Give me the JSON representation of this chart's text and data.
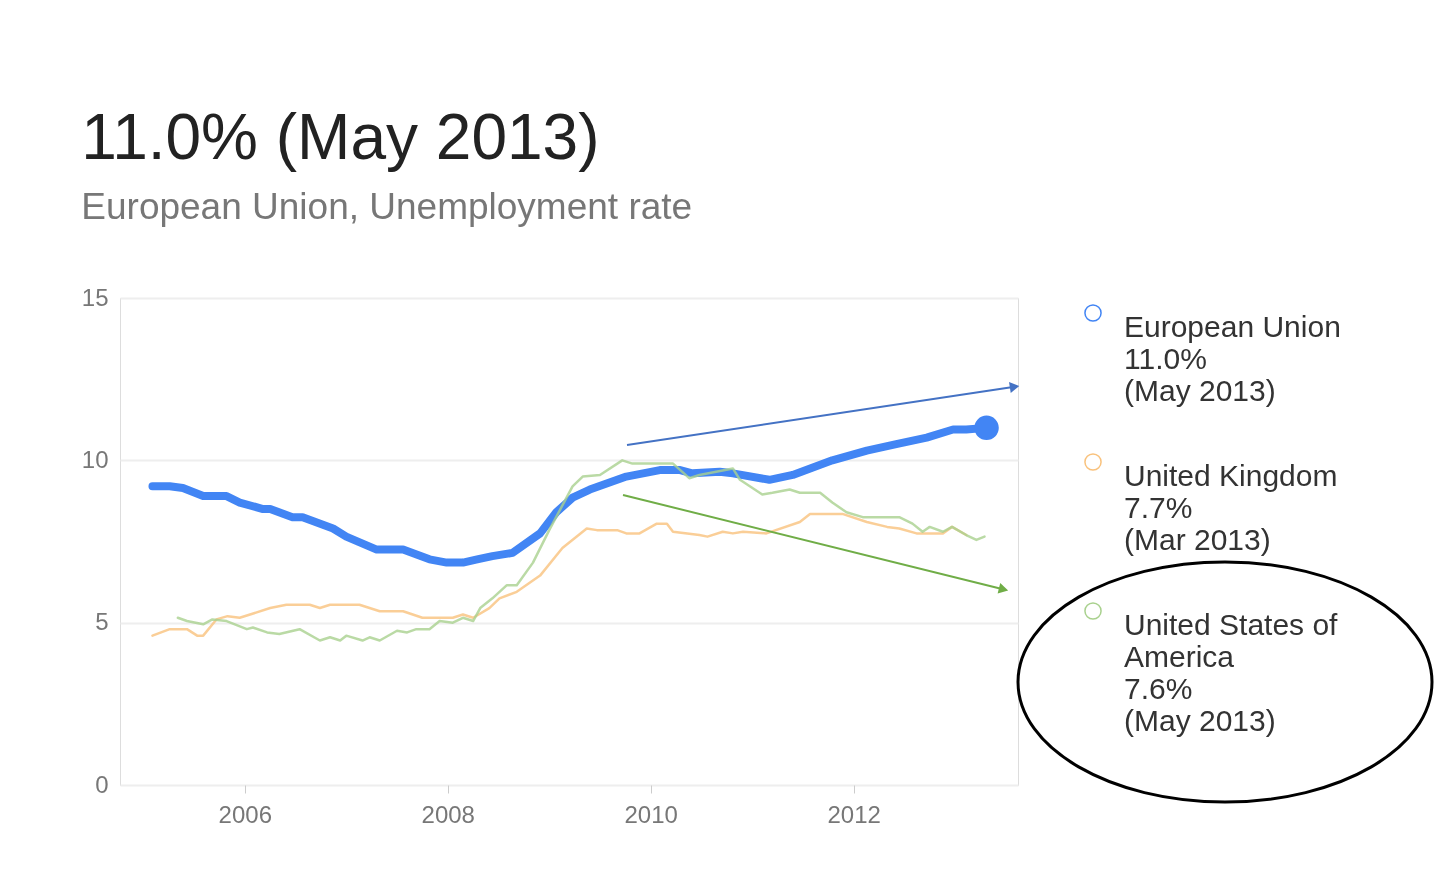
{
  "chart_data": {
    "type": "line",
    "title": "11.0% (May 2013)",
    "subtitle": "European Union, Unemployment rate",
    "xlim": [
      2004.77,
      2013.62
    ],
    "xticks": [
      2006,
      2008,
      2010,
      2012
    ],
    "ylim": [
      0,
      15
    ],
    "yticks": [
      0,
      5,
      10,
      15
    ],
    "grid": "y",
    "legend": "right",
    "series": [
      {
        "name": "European Union\n11.0%\n(May 2013)",
        "color": "#4285f4",
        "x": [
          2005.09,
          2005.26,
          2005.39,
          2005.59,
          2005.82,
          2005.95,
          2006.18,
          2006.25,
          2006.47,
          2006.57,
          2006.87,
          2007.0,
          2007.3,
          2007.56,
          2007.82,
          2007.99,
          2008.15,
          2008.29,
          2008.44,
          2008.64,
          2008.91,
          2009.07,
          2009.23,
          2009.4,
          2009.76,
          2010.09,
          2010.29,
          2010.41,
          2010.68,
          2010.81,
          2011.17,
          2011.4,
          2011.79,
          2012.13,
          2012.42,
          2012.72,
          2012.98,
          2013.11,
          2013.31
        ],
        "values": [
          9.2,
          9.2,
          9.15,
          8.9,
          8.9,
          8.7,
          8.5,
          8.5,
          8.25,
          8.25,
          7.9,
          7.65,
          7.25,
          7.25,
          6.95,
          6.85,
          6.85,
          6.95,
          7.05,
          7.15,
          7.75,
          8.4,
          8.85,
          9.1,
          9.5,
          9.7,
          9.7,
          9.6,
          9.65,
          9.6,
          9.4,
          9.55,
          10.0,
          10.3,
          10.5,
          10.7,
          10.95,
          10.95,
          11.0
        ]
      },
      {
        "name": "United Kingdom\n7.7%\n(Mar 2013)",
        "color": "#f9c27d",
        "x": [
          2005.09,
          2005.26,
          2005.43,
          2005.53,
          2005.59,
          2005.72,
          2005.83,
          2005.95,
          2006.25,
          2006.41,
          2006.64,
          2006.74,
          2006.84,
          2007.13,
          2007.33,
          2007.56,
          2007.75,
          2008.05,
          2008.15,
          2008.25,
          2008.41,
          2008.51,
          2008.68,
          2008.91,
          2009.13,
          2009.37,
          2009.47,
          2009.67,
          2009.76,
          2009.89,
          2010.06,
          2010.16,
          2010.22,
          2010.48,
          2010.56,
          2010.71,
          2010.81,
          2010.91,
          2011.14,
          2011.47,
          2011.57,
          2011.89,
          2012.13,
          2012.33,
          2012.45,
          2012.62,
          2012.88,
          2012.97,
          2013.11
        ],
        "values": [
          4.6,
          4.8,
          4.8,
          4.6,
          4.6,
          5.1,
          5.2,
          5.15,
          5.45,
          5.55,
          5.55,
          5.45,
          5.55,
          5.55,
          5.35,
          5.35,
          5.15,
          5.15,
          5.25,
          5.15,
          5.45,
          5.75,
          5.95,
          6.45,
          7.3,
          7.9,
          7.85,
          7.85,
          7.75,
          7.75,
          8.05,
          8.05,
          7.8,
          7.7,
          7.65,
          7.8,
          7.75,
          7.8,
          7.75,
          8.1,
          8.35,
          8.35,
          8.1,
          7.95,
          7.9,
          7.75,
          7.75,
          7.95,
          7.7
        ]
      },
      {
        "name": "United States of\nAmerica\n7.6%\n(May 2013)",
        "color": "#a9d18e",
        "x": [
          2005.34,
          2005.43,
          2005.59,
          2005.68,
          2005.82,
          2006.02,
          2006.08,
          2006.22,
          2006.34,
          2006.54,
          2006.74,
          2006.84,
          2006.94,
          2007.0,
          2007.16,
          2007.23,
          2007.33,
          2007.5,
          2007.6,
          2007.69,
          2007.82,
          2007.92,
          2008.05,
          2008.15,
          2008.25,
          2008.32,
          2008.44,
          2008.58,
          2008.68,
          2008.84,
          2009.0,
          2009.23,
          2009.33,
          2009.5,
          2009.72,
          2009.82,
          2009.96,
          2010.12,
          2010.22,
          2010.38,
          2010.48,
          2010.81,
          2010.88,
          2011.1,
          2011.2,
          2011.37,
          2011.47,
          2011.67,
          2011.79,
          2011.93,
          2012.09,
          2012.29,
          2012.45,
          2012.58,
          2012.68,
          2012.75,
          2012.88,
          2012.97,
          2013.11,
          2013.21,
          2013.29
        ],
        "values": [
          5.15,
          5.05,
          4.95,
          5.1,
          5.05,
          4.8,
          4.85,
          4.7,
          4.65,
          4.8,
          4.45,
          4.55,
          4.45,
          4.6,
          4.45,
          4.55,
          4.45,
          4.75,
          4.7,
          4.8,
          4.8,
          5.05,
          5.0,
          5.15,
          5.05,
          5.45,
          5.75,
          6.15,
          6.15,
          6.85,
          7.85,
          9.2,
          9.5,
          9.55,
          10.0,
          9.9,
          9.9,
          9.9,
          9.9,
          9.45,
          9.55,
          9.75,
          9.4,
          8.95,
          9.0,
          9.1,
          9.0,
          9.0,
          8.7,
          8.4,
          8.25,
          8.25,
          8.25,
          8.05,
          7.8,
          7.95,
          7.8,
          7.95,
          7.7,
          7.55,
          7.65
        ]
      },
      {
        "type": "scatter",
        "color": "#4285f4",
        "x": [
          2013.31
        ],
        "values": [
          11.0
        ]
      }
    ]
  }
}
